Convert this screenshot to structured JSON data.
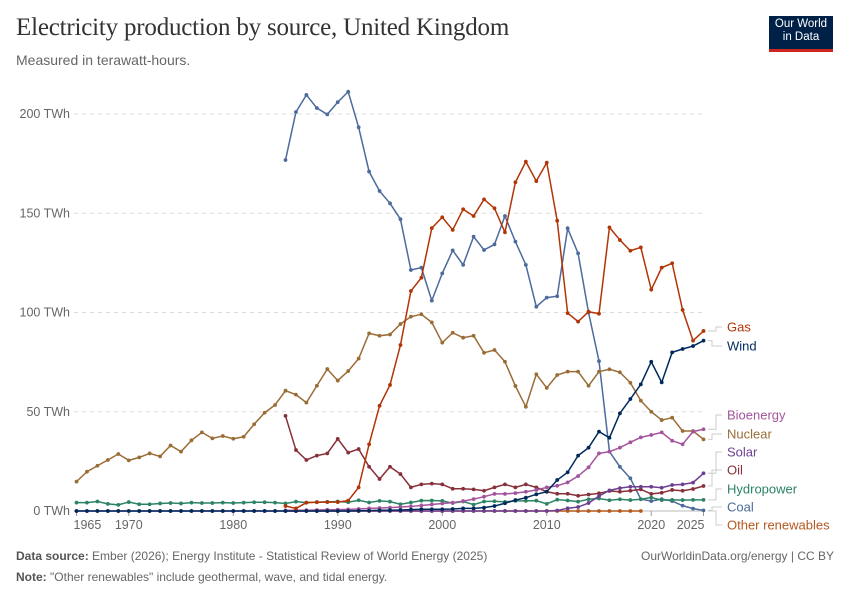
{
  "header": {
    "title": "Electricity production by source, United Kingdom",
    "subtitle": "Measured in terawatt-hours.",
    "logo_line1": "Our World",
    "logo_line2": "in Data"
  },
  "footer": {
    "source_label": "Data source:",
    "source_text": "Ember (2026); Energy Institute - Statistical Review of World Energy (2025)",
    "note_label": "Note:",
    "note_text": "\"Other renewables\" include geothermal, wave, and tidal energy.",
    "url": "OurWorldinData.org/energy | CC BY"
  },
  "chart_data": {
    "type": "line",
    "title": "Electricity production by source, United Kingdom",
    "subtitle": "Measured in terawatt-hours.",
    "xlabel": "",
    "ylabel": "",
    "xlim": [
      1965,
      2025
    ],
    "ylim": [
      0,
      210
    ],
    "grid": "horizontal dashed",
    "legend": "right, labels at line ends",
    "x_ticks": [
      "1965",
      "1970",
      "1980",
      "1990",
      "2000",
      "2010",
      "2020",
      "2025"
    ],
    "y_ticks": [
      {
        "value": 0,
        "label": "0 TWh"
      },
      {
        "value": 50,
        "label": "50 TWh"
      },
      {
        "value": 100,
        "label": "100 TWh"
      },
      {
        "value": 150,
        "label": "150 TWh"
      },
      {
        "value": 200,
        "label": "200 TWh"
      }
    ],
    "series": [
      {
        "name": "Gas",
        "color": "#b13507",
        "start_year": 1985,
        "values": [
          2.5,
          1.3,
          4.2,
          4.4,
          4.5,
          4.5,
          5.2,
          11.9,
          33.6,
          53,
          63.5,
          83.6,
          110.8,
          117.5,
          142.5,
          148,
          141.6,
          152,
          148.6,
          157,
          152.5,
          140.4,
          165.6,
          176,
          166.2,
          175.5,
          146.2,
          99.7,
          95.4,
          100.4,
          99.4,
          142.9,
          136.5,
          131.1,
          132.8,
          111.5,
          122.6,
          124.8,
          101.3,
          85.8,
          90.7
        ]
      },
      {
        "name": "Wind",
        "color": "#00295b",
        "start_year": 1965,
        "values": [
          0,
          0,
          0,
          0,
          0,
          0,
          0,
          0,
          0,
          0,
          0,
          0,
          0,
          0,
          0,
          0,
          0,
          0,
          0,
          0,
          0,
          0,
          0,
          0,
          0,
          0,
          0.01,
          0.15,
          0.2,
          0.35,
          0.4,
          0.5,
          0.7,
          0.9,
          0.9,
          0.9,
          1,
          1.3,
          1.3,
          1.7,
          2.5,
          3.9,
          5.5,
          6.7,
          8.4,
          9.7,
          15.6,
          19.5,
          27.9,
          31.9,
          40,
          36.9,
          49.2,
          56.4,
          63.8,
          75.2,
          64.8,
          79.9,
          81.6,
          83.1,
          85.8
        ]
      },
      {
        "name": "Bioenergy",
        "color": "#a2559c",
        "start_year": 1985,
        "values": [
          0.3,
          0.4,
          0.4,
          0.5,
          0.6,
          0.7,
          0.8,
          1,
          1.3,
          1.5,
          1.7,
          2,
          2.3,
          2.8,
          3.3,
          3.8,
          4.2,
          5,
          6,
          7.2,
          8.6,
          8.6,
          9,
          9.7,
          10.6,
          11.9,
          12.7,
          14.4,
          17.6,
          22,
          29,
          29.9,
          31.9,
          34.6,
          37.1,
          38.3,
          39.6,
          35.4,
          33.6,
          40,
          41.2
        ]
      },
      {
        "name": "Nuclear",
        "color": "#9a6d37",
        "start_year": 1965,
        "values": [
          14.8,
          19.8,
          22.8,
          25.7,
          28.7,
          25.5,
          27,
          29,
          27.5,
          33,
          29.9,
          35.6,
          39.6,
          36.6,
          37.8,
          36.4,
          37.4,
          43.7,
          49.5,
          53.4,
          60.6,
          58.6,
          54.6,
          63.1,
          71.5,
          65.7,
          70.5,
          76.8,
          89.5,
          88.3,
          88.9,
          94.2,
          97.9,
          99.1,
          95,
          84.8,
          89.8,
          87.3,
          88.3,
          79.7,
          81.1,
          75.2,
          63,
          52.5,
          68.9,
          62,
          68.5,
          70.2,
          70.2,
          63.1,
          70.2,
          71.4,
          69.9,
          64.6,
          55.6,
          50,
          45.8,
          47,
          40.3,
          40.3,
          36.1
        ]
      },
      {
        "name": "Solar",
        "color": "#6d3e91",
        "start_year": 1965,
        "values": [
          0,
          0,
          0,
          0,
          0,
          0,
          0,
          0,
          0,
          0,
          0,
          0,
          0,
          0,
          0,
          0,
          0,
          0,
          0,
          0,
          0,
          0,
          0,
          0,
          0,
          0,
          0,
          0,
          0,
          0,
          0,
          0,
          0,
          0,
          0,
          0,
          0,
          0,
          0,
          0,
          0,
          0,
          0,
          0,
          0,
          0,
          0.24,
          1.35,
          2,
          4,
          7.5,
          10.4,
          11.5,
          12.2,
          12.2,
          12.2,
          11.7,
          13.1,
          13.4,
          14.3,
          19
        ]
      },
      {
        "name": "Oil",
        "color": "#883039",
        "start_year": 1985,
        "values": [
          47.9,
          30.7,
          25.7,
          27.9,
          29,
          36.3,
          29.4,
          31.2,
          22.3,
          16.1,
          22.3,
          18.6,
          11.9,
          13.4,
          13.8,
          13.4,
          11.2,
          11.2,
          10.9,
          10.2,
          11.9,
          13.4,
          11.9,
          13.4,
          11.9,
          9.7,
          8.7,
          8.7,
          7.7,
          8.3,
          8.9,
          10.1,
          9.7,
          10.2,
          10.9,
          8.6,
          9.2,
          10.6,
          10.2,
          11.1,
          12.6
        ]
      },
      {
        "name": "Hydropower",
        "color": "#2c8465",
        "start_year": 1965,
        "values": [
          4.2,
          4.2,
          4.8,
          3.6,
          3.1,
          4.5,
          3.4,
          3.4,
          3.8,
          4,
          3.8,
          4.2,
          4,
          4,
          4.2,
          4,
          4.2,
          4.4,
          4.4,
          4.2,
          3.8,
          4.7,
          4.2,
          4.5,
          4.6,
          4.8,
          4.4,
          5.4,
          4.3,
          5.1,
          4.7,
          3.4,
          4.3,
          5.2,
          5.3,
          5.1,
          4,
          4.8,
          3.2,
          4.8,
          4.9,
          4.6,
          5.1,
          5.1,
          5.2,
          3.6,
          5.7,
          5.3,
          4.7,
          5.9,
          6.3,
          5.4,
          5.9,
          5.5,
          5.9,
          6.8,
          5.5,
          5.6,
          5.5,
          5.6,
          5.6
        ]
      },
      {
        "name": "Coal",
        "color": "#4c6a9c",
        "start_year": 1985,
        "values": [
          176.8,
          201,
          209.6,
          203,
          199.8,
          206,
          211.2,
          193.3,
          171,
          161.2,
          155,
          147,
          121.4,
          122.6,
          106,
          119.7,
          131.3,
          124,
          138.2,
          131.5,
          134.3,
          148.6,
          135.7,
          124,
          102.9,
          107.5,
          108.2,
          142.4,
          129.8,
          100,
          75.5,
          29.9,
          22.3,
          16.5,
          6,
          5,
          6,
          5,
          2.7,
          1.2,
          0.3
        ]
      },
      {
        "name": "Other renewables",
        "color": "#b4581f",
        "start_year": 1985,
        "values": [
          0,
          0,
          0,
          0,
          0,
          0,
          0,
          0,
          0,
          0,
          0,
          0,
          0,
          0,
          0,
          0,
          0,
          0,
          0,
          0,
          0,
          0,
          0,
          0,
          0,
          0,
          0,
          0,
          0,
          0,
          0,
          0,
          0,
          0,
          0
        ]
      }
    ]
  }
}
